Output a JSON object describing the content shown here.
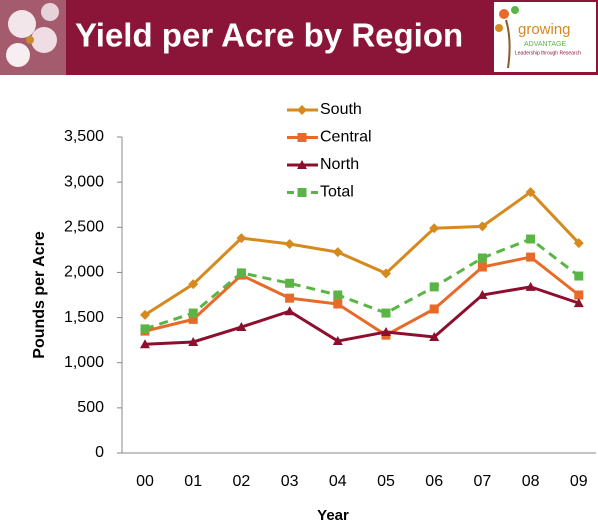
{
  "chart_data": {
    "type": "line",
    "title": "Yield per Acre by Region",
    "x_label": "Year",
    "y_label": "Pounds per Acre",
    "categories": [
      "00",
      "01",
      "02",
      "03",
      "04",
      "05",
      "06",
      "07",
      "08",
      "09"
    ],
    "series": [
      {
        "name": "South",
        "color": "#d68a1e",
        "marker": "diamond",
        "dashed": false,
        "values": [
          1530,
          1870,
          2380,
          2315,
          2225,
          1990,
          2490,
          2510,
          2890,
          2325
        ]
      },
      {
        "name": "Central",
        "color": "#e86a28",
        "marker": "square",
        "dashed": false,
        "values": [
          1350,
          1480,
          1970,
          1715,
          1650,
          1305,
          1595,
          2060,
          2170,
          1750
        ]
      },
      {
        "name": "North",
        "color": "#8c0f2e",
        "marker": "triangle",
        "dashed": false,
        "values": [
          1205,
          1230,
          1395,
          1570,
          1240,
          1340,
          1285,
          1750,
          1840,
          1660
        ]
      },
      {
        "name": "Total",
        "color": "#5bb546",
        "marker": "square",
        "dashed": true,
        "values": [
          1375,
          1550,
          1995,
          1880,
          1750,
          1550,
          1840,
          2160,
          2370,
          1960
        ]
      }
    ],
    "ylim": [
      0,
      3500
    ],
    "yticks": [
      0,
      500,
      {
        "value": 1000,
        "label": "1,000"
      },
      {
        "value": 1500,
        "label": "1,500"
      },
      {
        "value": 2000,
        "label": "2,000"
      },
      {
        "value": 2500,
        "label": "2,500"
      },
      {
        "value": 3000,
        "label": "3,000"
      },
      {
        "value": 3500,
        "label": "3,500"
      }
    ],
    "grid": false,
    "legend": "top"
  },
  "logo": {
    "word": "growing",
    "brand": "ADVANTAGE",
    "tagline": "Leadership through Research"
  }
}
